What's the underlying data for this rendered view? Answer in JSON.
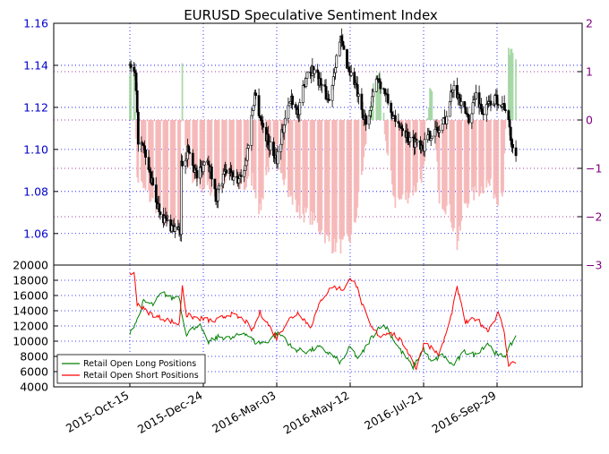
{
  "chart_data": [
    {
      "type": "candlestick",
      "title": "EURUSD Speculative Sentiment Index",
      "ylim": [
        1.045,
        1.16
      ],
      "ylim_right": [
        -3,
        2
      ],
      "yticks": [
        "1.06",
        "1.08",
        "1.10",
        "1.12",
        "1.14",
        "1.16"
      ],
      "yticks_right": [
        "−3",
        "−2",
        "−1",
        "0",
        "1",
        "2"
      ],
      "grid": true,
      "colors": {
        "up_candle": "#ffffff",
        "down_candle": "#000000",
        "wick": "#000000",
        "ssi_positive": "#9fd39f",
        "ssi_negative": "#f5b3b3",
        "left_axis": "#0000cc",
        "right_axis": "#800080"
      },
      "price_anchors": [
        [
          "2015-10-15",
          1.14
        ],
        [
          "2015-10-20",
          1.135
        ],
        [
          "2015-10-23",
          1.105
        ],
        [
          "2015-10-28",
          1.1
        ],
        [
          "2015-11-04",
          1.086
        ],
        [
          "2015-11-10",
          1.074
        ],
        [
          "2015-11-18",
          1.066
        ],
        [
          "2015-11-25",
          1.063
        ],
        [
          "2015-12-02",
          1.06
        ],
        [
          "2015-12-03",
          1.093
        ],
        [
          "2015-12-10",
          1.1
        ],
        [
          "2015-12-18",
          1.087
        ],
        [
          "2015-12-28",
          1.097
        ],
        [
          "2016-01-05",
          1.077
        ],
        [
          "2016-01-15",
          1.09
        ],
        [
          "2016-01-25",
          1.085
        ],
        [
          "2016-02-02",
          1.092
        ],
        [
          "2016-02-11",
          1.127
        ],
        [
          "2016-02-18",
          1.112
        ],
        [
          "2016-02-25",
          1.102
        ],
        [
          "2016-03-03",
          1.096
        ],
        [
          "2016-03-10",
          1.112
        ],
        [
          "2016-03-17",
          1.125
        ],
        [
          "2016-03-24",
          1.117
        ],
        [
          "2016-04-01",
          1.138
        ],
        [
          "2016-04-08",
          1.138
        ],
        [
          "2016-04-15",
          1.13
        ],
        [
          "2016-04-22",
          1.123
        ],
        [
          "2016-04-29",
          1.145
        ],
        [
          "2016-05-03",
          1.152
        ],
        [
          "2016-05-10",
          1.139
        ],
        [
          "2016-05-17",
          1.131
        ],
        [
          "2016-05-24",
          1.114
        ],
        [
          "2016-05-31",
          1.116
        ],
        [
          "2016-06-06",
          1.136
        ],
        [
          "2016-06-14",
          1.127
        ],
        [
          "2016-06-24",
          1.112
        ],
        [
          "2016-06-30",
          1.112
        ],
        [
          "2016-07-08",
          1.104
        ],
        [
          "2016-07-15",
          1.104
        ],
        [
          "2016-07-21",
          1.102
        ],
        [
          "2016-07-28",
          1.108
        ],
        [
          "2016-08-05",
          1.109
        ],
        [
          "2016-08-12",
          1.116
        ],
        [
          "2016-08-19",
          1.133
        ],
        [
          "2016-08-26",
          1.12
        ],
        [
          "2016-09-02",
          1.115
        ],
        [
          "2016-09-09",
          1.126
        ],
        [
          "2016-09-16",
          1.117
        ],
        [
          "2016-09-23",
          1.123
        ],
        [
          "2016-09-30",
          1.124
        ],
        [
          "2016-10-07",
          1.12
        ],
        [
          "2016-10-14",
          1.1
        ],
        [
          "2016-10-17",
          1.098
        ]
      ],
      "ssi_anchors": [
        [
          "2015-10-15",
          1.1
        ],
        [
          "2015-10-19",
          1.0
        ],
        [
          "2015-10-22",
          -1.2
        ],
        [
          "2015-10-30",
          -1.5
        ],
        [
          "2015-11-10",
          -1.8
        ],
        [
          "2015-11-20",
          -2.2
        ],
        [
          "2015-12-01",
          -2.3
        ],
        [
          "2015-12-04",
          1.2
        ],
        [
          "2015-12-08",
          -1.0
        ],
        [
          "2015-12-20",
          -1.3
        ],
        [
          "2016-01-04",
          -1.5
        ],
        [
          "2016-01-18",
          -1.2
        ],
        [
          "2016-02-01",
          -1.4
        ],
        [
          "2016-02-09",
          -1.2
        ],
        [
          "2016-02-16",
          -1.9
        ],
        [
          "2016-02-23",
          -1.0
        ],
        [
          "2016-03-03",
          -0.6
        ],
        [
          "2016-03-14",
          -1.5
        ],
        [
          "2016-03-24",
          -1.9
        ],
        [
          "2016-04-04",
          -2.0
        ],
        [
          "2016-04-15",
          -2.3
        ],
        [
          "2016-04-25",
          -2.6
        ],
        [
          "2016-05-05",
          -2.6
        ],
        [
          "2016-05-15",
          -2.4
        ],
        [
          "2016-05-24",
          -1.0
        ],
        [
          "2016-06-01",
          0.5
        ],
        [
          "2016-06-10",
          0.9
        ],
        [
          "2016-06-16",
          -0.7
        ],
        [
          "2016-06-24",
          -1.7
        ],
        [
          "2016-07-04",
          -1.6
        ],
        [
          "2016-07-14",
          -1.4
        ],
        [
          "2016-07-22",
          -1.0
        ],
        [
          "2016-07-28",
          0.8
        ],
        [
          "2016-08-05",
          -1.6
        ],
        [
          "2016-08-15",
          -1.9
        ],
        [
          "2016-08-22",
          -2.6
        ],
        [
          "2016-08-30",
          -1.7
        ],
        [
          "2016-09-09",
          -1.5
        ],
        [
          "2016-09-20",
          -1.3
        ],
        [
          "2016-09-30",
          -1.6
        ],
        [
          "2016-10-05",
          -1.4
        ],
        [
          "2016-10-10",
          1.4
        ],
        [
          "2016-10-17",
          1.2
        ]
      ]
    },
    {
      "type": "line",
      "xlabels": [
        "2015-Oct-15",
        "2015-Dec-24",
        "2016-Mar-03",
        "2016-May-12",
        "2016-Jul-21",
        "2016-Sep-29"
      ],
      "ylim": [
        4000,
        20000
      ],
      "yticks": [
        "4000",
        "6000",
        "8000",
        "10000",
        "12000",
        "14000",
        "16000",
        "18000",
        "20000"
      ],
      "grid": true,
      "legend_placement": "lower-left",
      "series": [
        {
          "name": "Retail Open Long Positions",
          "color": "#008000",
          "anchors": [
            [
              "2015-10-15",
              11200
            ],
            [
              "2015-10-22",
              12800
            ],
            [
              "2015-10-28",
              15200
            ],
            [
              "2015-11-06",
              14800
            ],
            [
              "2015-11-15",
              16400
            ],
            [
              "2015-11-24",
              15600
            ],
            [
              "2015-12-01",
              16000
            ],
            [
              "2015-12-04",
              13200
            ],
            [
              "2015-12-08",
              11000
            ],
            [
              "2015-12-20",
              12300
            ],
            [
              "2015-12-28",
              9800
            ],
            [
              "2016-01-08",
              10600
            ],
            [
              "2016-01-20",
              10300
            ],
            [
              "2016-02-01",
              11200
            ],
            [
              "2016-02-12",
              9800
            ],
            [
              "2016-02-22",
              9800
            ],
            [
              "2016-03-03",
              11000
            ],
            [
              "2016-03-10",
              10600
            ],
            [
              "2016-03-18",
              9000
            ],
            [
              "2016-04-01",
              8600
            ],
            [
              "2016-04-12",
              9200
            ],
            [
              "2016-04-22",
              8400
            ],
            [
              "2016-05-03",
              7200
            ],
            [
              "2016-05-12",
              9200
            ],
            [
              "2016-05-20",
              7600
            ],
            [
              "2016-05-31",
              10200
            ],
            [
              "2016-06-09",
              12000
            ],
            [
              "2016-06-16",
              11800
            ],
            [
              "2016-06-24",
              9800
            ],
            [
              "2016-07-01",
              8400
            ],
            [
              "2016-07-11",
              6600
            ],
            [
              "2016-07-21",
              9000
            ],
            [
              "2016-07-28",
              7200
            ],
            [
              "2016-08-08",
              8200
            ],
            [
              "2016-08-18",
              6800
            ],
            [
              "2016-08-29",
              8600
            ],
            [
              "2016-09-08",
              8200
            ],
            [
              "2016-09-20",
              9800
            ],
            [
              "2016-09-30",
              8000
            ],
            [
              "2016-10-07",
              8200
            ],
            [
              "2016-10-17",
              10700
            ]
          ]
        },
        {
          "name": "Retail Open Short Positions",
          "color": "#ff0000",
          "anchors": [
            [
              "2015-10-15",
              19000
            ],
            [
              "2015-10-19",
              18800
            ],
            [
              "2015-10-22",
              15000
            ],
            [
              "2015-10-30",
              14000
            ],
            [
              "2015-11-10",
              13200
            ],
            [
              "2015-11-20",
              12800
            ],
            [
              "2015-12-01",
              12200
            ],
            [
              "2015-12-04",
              17400
            ],
            [
              "2015-12-08",
              13400
            ],
            [
              "2015-12-20",
              13000
            ],
            [
              "2016-01-04",
              12600
            ],
            [
              "2016-01-18",
              13600
            ],
            [
              "2016-02-01",
              12800
            ],
            [
              "2016-02-09",
              11400
            ],
            [
              "2016-02-16",
              13800
            ],
            [
              "2016-02-23",
              12400
            ],
            [
              "2016-03-03",
              10400
            ],
            [
              "2016-03-14",
              12800
            ],
            [
              "2016-03-24",
              13800
            ],
            [
              "2016-04-04",
              11800
            ],
            [
              "2016-04-15",
              15600
            ],
            [
              "2016-04-25",
              17200
            ],
            [
              "2016-05-05",
              16800
            ],
            [
              "2016-05-15",
              18600
            ],
            [
              "2016-05-24",
              14600
            ],
            [
              "2016-06-01",
              11800
            ],
            [
              "2016-06-10",
              10600
            ],
            [
              "2016-06-16",
              11200
            ],
            [
              "2016-06-24",
              10800
            ],
            [
              "2016-07-04",
              9200
            ],
            [
              "2016-07-14",
              6400
            ],
            [
              "2016-07-22",
              10000
            ],
            [
              "2016-07-28",
              9200
            ],
            [
              "2016-08-05",
              8200
            ],
            [
              "2016-08-15",
              12600
            ],
            [
              "2016-08-22",
              17000
            ],
            [
              "2016-08-30",
              12400
            ],
            [
              "2016-09-09",
              13000
            ],
            [
              "2016-09-20",
              11400
            ],
            [
              "2016-09-30",
              13600
            ],
            [
              "2016-10-05",
              11800
            ],
            [
              "2016-10-10",
              7000
            ],
            [
              "2016-10-17",
              7200
            ]
          ]
        }
      ]
    }
  ]
}
